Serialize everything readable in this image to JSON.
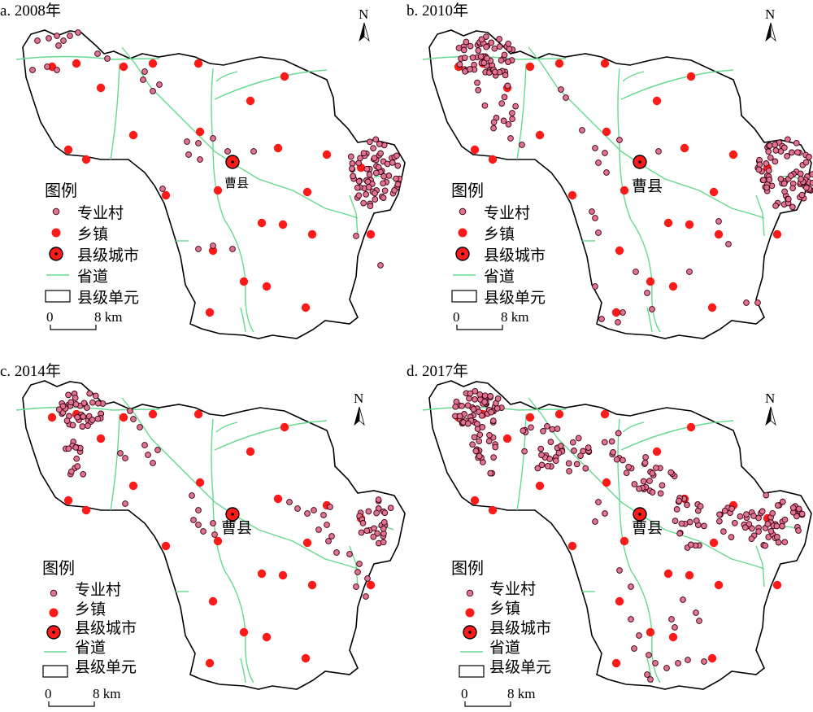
{
  "panels": [
    {
      "id": "a",
      "title": "a. 2008年",
      "city_label": "曹县"
    },
    {
      "id": "b",
      "title": "b. 2010年",
      "city_label": "曹县"
    },
    {
      "id": "c",
      "title": "c. 2014年",
      "city_label": "曹县"
    },
    {
      "id": "d",
      "title": "d. 2017年",
      "city_label": "曹县"
    }
  ],
  "legend": {
    "title": "图例",
    "items": [
      "专业村",
      "乡镇",
      "县级城市",
      "省道",
      "县级单元"
    ]
  },
  "scale_bar": {
    "zero": "0",
    "end": "8 km"
  },
  "north_arrow": {
    "label": "N"
  },
  "colors": {
    "village_fill": "#e0738f",
    "village_stroke": "#3a0010",
    "town": "#ff1a1a",
    "road": "#66d98f",
    "boundary": "#000000"
  }
}
